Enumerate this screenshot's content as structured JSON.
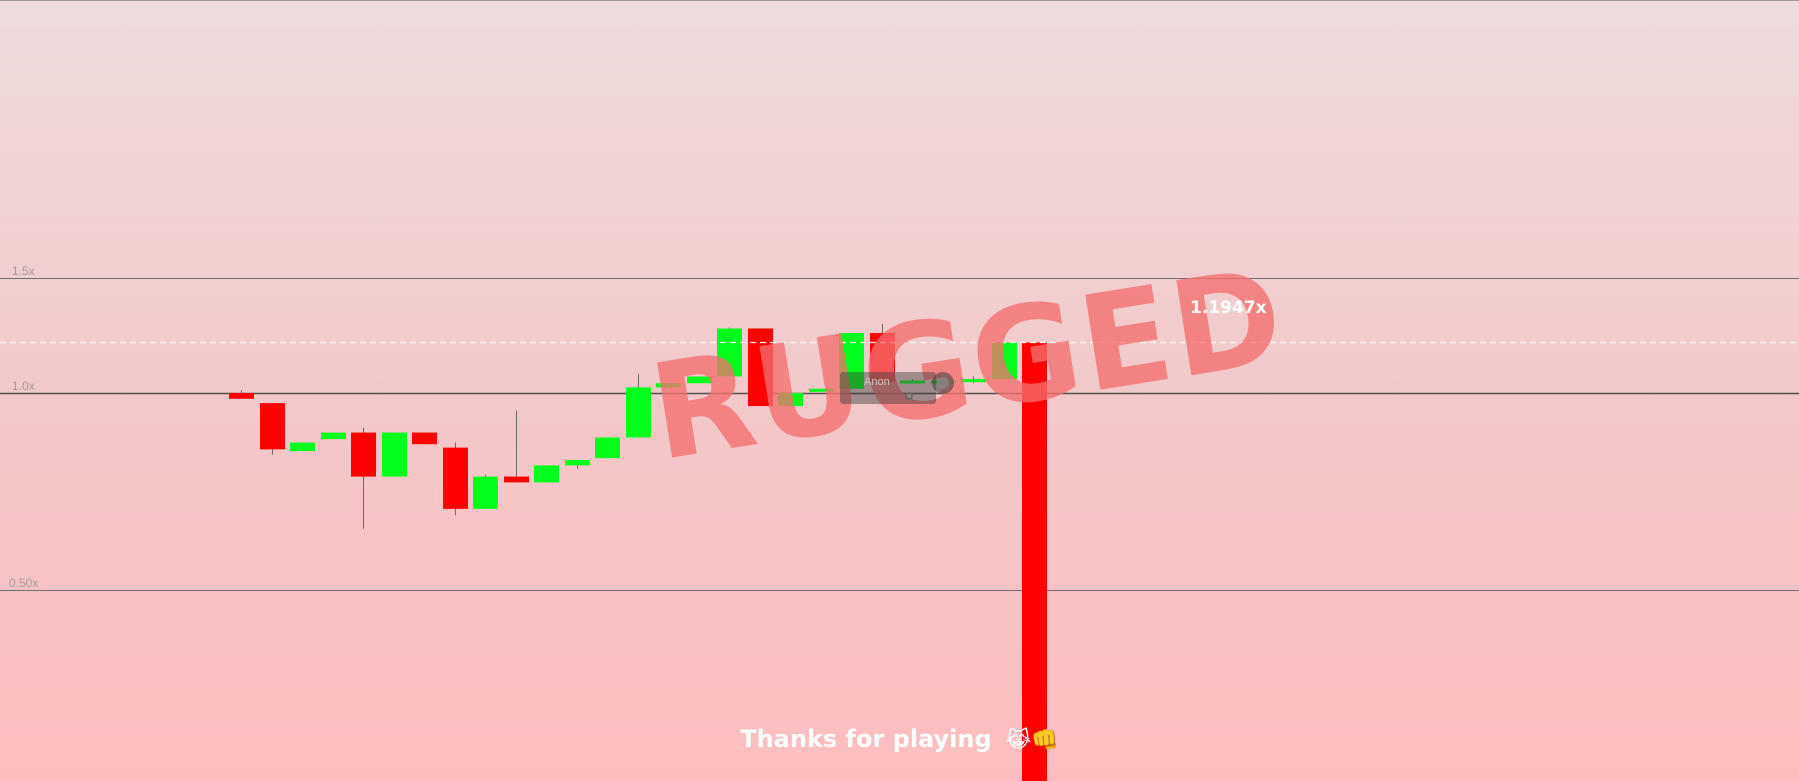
{
  "game": {
    "status_text": "RUGGED",
    "current_multiplier_label": "1.1947x",
    "footer_message": "Thanks for playing",
    "footer_emojis": "😹👊",
    "player": {
      "name": "Anon"
    }
  },
  "colors": {
    "bullish": "#00ff1a",
    "bearish": "#ff0000",
    "background_top": "#eedcdc",
    "background_bottom": "#fdbdbe",
    "rugged_text": "#f46e6e"
  },
  "chart_data": {
    "type": "candlestick",
    "y_axis": {
      "scale": "log",
      "gridlines": [
        {
          "value": 1.5,
          "label": "1.5x"
        },
        {
          "value": 1.0,
          "label": "1.0x"
        },
        {
          "value": 0.5,
          "label": "0.50x"
        }
      ]
    },
    "current_value": 1.1947,
    "candles": [
      {
        "open": 1.0,
        "high": 1.01,
        "low": 0.98,
        "close": 0.98
      },
      {
        "open": 0.965,
        "high": 0.965,
        "low": 0.805,
        "close": 0.82
      },
      {
        "open": 0.815,
        "high": 0.84,
        "low": 0.815,
        "close": 0.84
      },
      {
        "open": 0.85,
        "high": 0.87,
        "low": 0.85,
        "close": 0.87
      },
      {
        "open": 0.87,
        "high": 0.885,
        "low": 0.62,
        "close": 0.745
      },
      {
        "open": 0.745,
        "high": 0.87,
        "low": 0.745,
        "close": 0.87
      },
      {
        "open": 0.87,
        "high": 0.87,
        "low": 0.835,
        "close": 0.835
      },
      {
        "open": 0.825,
        "high": 0.84,
        "low": 0.65,
        "close": 0.665
      },
      {
        "open": 0.665,
        "high": 0.75,
        "low": 0.665,
        "close": 0.745
      },
      {
        "open": 0.745,
        "high": 0.94,
        "low": 0.73,
        "close": 0.73
      },
      {
        "open": 0.73,
        "high": 0.775,
        "low": 0.73,
        "close": 0.775
      },
      {
        "open": 0.775,
        "high": 0.79,
        "low": 0.765,
        "close": 0.79
      },
      {
        "open": 0.795,
        "high": 0.855,
        "low": 0.795,
        "close": 0.855
      },
      {
        "open": 0.855,
        "high": 1.07,
        "low": 0.855,
        "close": 1.02
      },
      {
        "open": 1.02,
        "high": 1.035,
        "low": 1.02,
        "close": 1.035
      },
      {
        "open": 1.035,
        "high": 1.06,
        "low": 1.035,
        "close": 1.06
      },
      {
        "open": 1.06,
        "high": 1.26,
        "low": 1.06,
        "close": 1.255
      },
      {
        "open": 1.255,
        "high": 1.255,
        "low": 0.955,
        "close": 0.955
      },
      {
        "open": 0.955,
        "high": 1.0,
        "low": 0.955,
        "close": 1.0
      },
      {
        "open": 1.005,
        "high": 1.015,
        "low": 1.005,
        "close": 1.015
      },
      {
        "open": 1.015,
        "high": 1.235,
        "low": 1.015,
        "close": 1.235
      },
      {
        "open": 1.235,
        "high": 1.275,
        "low": 1.04,
        "close": 1.04
      },
      {
        "open": 1.04,
        "high": 1.05,
        "low": 1.04,
        "close": 1.045
      },
      {
        "open": 1.045,
        "high": 1.055,
        "low": 1.04,
        "close": 1.045
      },
      {
        "open": 1.045,
        "high": 1.06,
        "low": 1.035,
        "close": 1.05
      },
      {
        "open": 1.05,
        "high": 1.1947,
        "low": 1.05,
        "close": 1.1947
      },
      {
        "open": 1.1947,
        "high": 1.1947,
        "low": 0.25,
        "close": 0.25
      }
    ]
  }
}
